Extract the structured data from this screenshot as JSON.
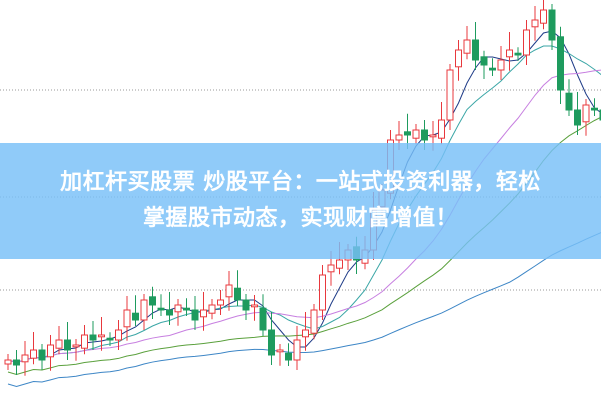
{
  "banner": {
    "line1": "加杠杆买股票 炒股平台：一站式投资利器，轻松",
    "line2": "掌握股市动态，实现财富增值！"
  },
  "chart_data": {
    "type": "candlestick",
    "title": "",
    "grid": "dotted horizontal",
    "closes": [
      12.5,
      11.25,
      13.75,
      15,
      12.5,
      16.25,
      17.5,
      15,
      16.25,
      18.75,
      17.5,
      18.75,
      17.5,
      20,
      25,
      22.5,
      27.5,
      26.25,
      25,
      23.75,
      26.25,
      25,
      22.5,
      25,
      26.25,
      27.5,
      31.25,
      27.5,
      25,
      26.25,
      20,
      13.75,
      15,
      12.5,
      17.5,
      20,
      25,
      33.75,
      36.25,
      37.5,
      40,
      37.5,
      40,
      50,
      55,
      67.5,
      68.75,
      68.75,
      70,
      67.5,
      68.75,
      72.5,
      85,
      90,
      92.5,
      87.5,
      86.25,
      85,
      87.5,
      90,
      88.75,
      95,
      97.5,
      100,
      92.5,
      80,
      75,
      71.25,
      76.25,
      75,
      72.5
    ],
    "moving_averages": [
      5,
      10,
      20,
      30,
      60
    ],
    "colors": {
      "up": "#e8383d",
      "down": "#1e9b5e",
      "ma5": "#1f3c88",
      "ma10": "#3aa6a6",
      "ma20": "#c77fe0",
      "ma30": "#5aa03c",
      "ma60": "#3d86c6",
      "grid": "#9a9a9a"
    }
  }
}
